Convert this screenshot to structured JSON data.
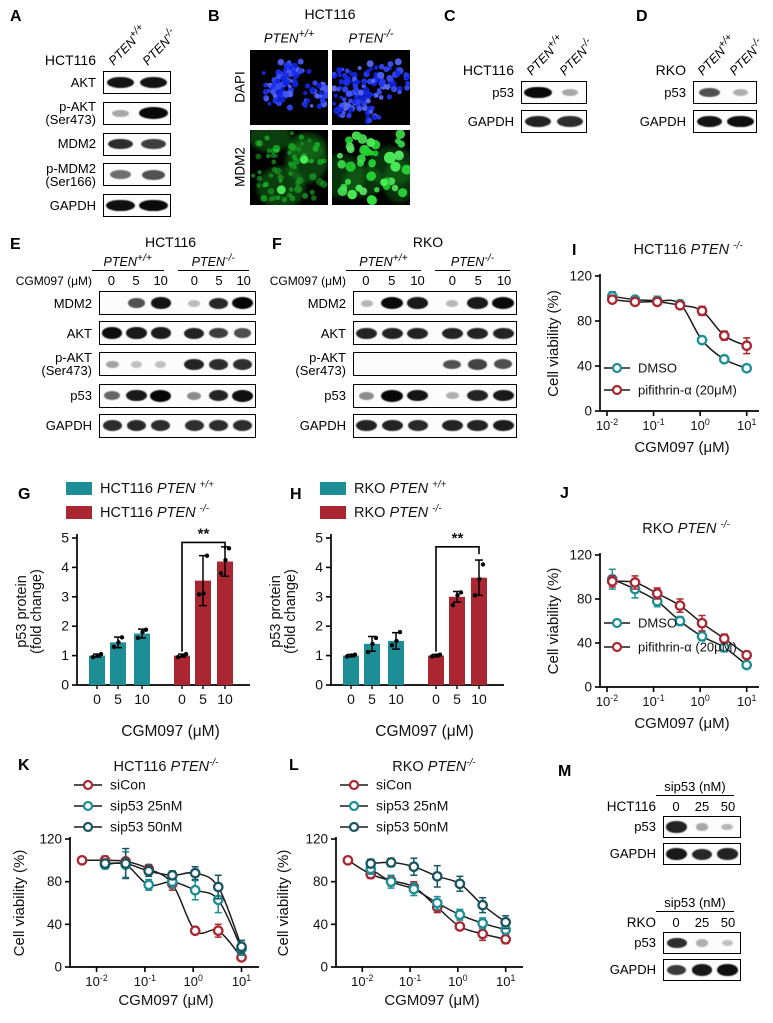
{
  "panels": {
    "A": "A",
    "B": "B",
    "C": "C",
    "D": "D",
    "E": "E",
    "F": "F",
    "G": "G",
    "H": "H",
    "I": "I",
    "J": "J",
    "K": "K",
    "L": "L",
    "M": "M"
  },
  "colors": {
    "teal": "#1d8e96",
    "red": "#aa2631",
    "dark_teal": "#175661",
    "curve": "#1c1c1c",
    "dapi_blue": "#2b2de8",
    "mdm2_green": "#3fd14b",
    "band": "#060606"
  },
  "blots": {
    "A": {
      "cell_line": "HCT116",
      "lanes": [
        {
          "name": "PTEN",
          "sup": "+/+"
        },
        {
          "name": "PTEN",
          "sup": "-/-"
        }
      ],
      "rows": [
        {
          "label": [
            "AKT"
          ],
          "bands": [
            0.92,
            0.92
          ]
        },
        {
          "label": [
            "p-AKT",
            "(Ser473)"
          ],
          "bands": [
            0.15,
            0.97
          ]
        },
        {
          "label": [
            "MDM2"
          ],
          "bands": [
            0.8,
            0.7
          ]
        },
        {
          "label": [
            "p-MDM2",
            "(Ser166)"
          ],
          "bands": [
            0.45,
            0.6
          ]
        },
        {
          "label": [
            "GAPDH"
          ],
          "bands": [
            0.95,
            0.97
          ]
        }
      ]
    },
    "C": {
      "cell_line": "HCT116",
      "lanes": [
        {
          "name": "PTEN",
          "sup": "+/+"
        },
        {
          "name": "PTEN",
          "sup": "-/-"
        }
      ],
      "rows": [
        {
          "label": [
            "p53"
          ],
          "bands": [
            0.97,
            0.15
          ]
        },
        {
          "label": [
            "GAPDH"
          ],
          "bands": [
            0.85,
            0.8
          ]
        }
      ]
    },
    "D": {
      "cell_line": "RKO",
      "lanes": [
        {
          "name": "PTEN",
          "sup": "+/+"
        },
        {
          "name": "PTEN",
          "sup": "-/-"
        }
      ],
      "rows": [
        {
          "label": [
            "p53"
          ],
          "bands": [
            0.6,
            0.12
          ]
        },
        {
          "label": [
            "GAPDH"
          ],
          "bands": [
            0.92,
            0.95
          ]
        }
      ]
    },
    "E": {
      "title": "HCT116",
      "treatment": "CGM097 (μM)",
      "groups": [
        {
          "name": "PTEN",
          "sup": "+/+"
        },
        {
          "name": "PTEN",
          "sup": "-/-"
        }
      ],
      "doses": [
        "0",
        "5",
        "10",
        "0",
        "5",
        "10"
      ],
      "rows": [
        {
          "label": [
            "MDM2"
          ],
          "bands": [
            0,
            0.6,
            0.92,
            0.05,
            0.82,
            1
          ]
        },
        {
          "label": [
            "AKT"
          ],
          "bands": [
            0.95,
            0.9,
            0.88,
            0.85,
            0.7,
            0.62
          ]
        },
        {
          "label": [
            "p-AKT",
            "(Ser473)"
          ],
          "bands": [
            0.18,
            0.02,
            0.02,
            0.85,
            0.8,
            0.78
          ]
        },
        {
          "label": [
            "p53"
          ],
          "bands": [
            0.5,
            0.9,
            1,
            0.3,
            0.85,
            0.95
          ]
        },
        {
          "label": [
            "GAPDH"
          ],
          "bands": [
            0.8,
            0.82,
            0.8,
            0.78,
            0.8,
            0.8
          ]
        }
      ]
    },
    "F": {
      "title": "RKO",
      "treatment": "CGM097 (μM)",
      "groups": [
        {
          "name": "PTEN",
          "sup": "+/+"
        },
        {
          "name": "PTEN",
          "sup": "-/-"
        }
      ],
      "doses": [
        "0",
        "5",
        "10",
        "0",
        "5",
        "10"
      ],
      "rows": [
        {
          "label": [
            "MDM2"
          ],
          "bands": [
            0.08,
            0.97,
            0.9,
            0.06,
            0.9,
            0.97
          ]
        },
        {
          "label": [
            "AKT"
          ],
          "bands": [
            0.85,
            0.85,
            0.85,
            0.85,
            0.85,
            0.85
          ]
        },
        {
          "label": [
            "p-AKT",
            "(Ser473)"
          ],
          "bands": [
            0,
            0,
            0,
            0.6,
            0.68,
            0.62
          ]
        },
        {
          "label": [
            "p53"
          ],
          "bands": [
            0.3,
            1,
            0.92,
            0.12,
            0.85,
            0.9
          ]
        },
        {
          "label": [
            "GAPDH"
          ],
          "bands": [
            0.85,
            0.85,
            0.82,
            0.85,
            0.85,
            0.88
          ]
        }
      ]
    },
    "M": {
      "groups": [
        {
          "header": "sip53 (nM)",
          "cell_line": "HCT116",
          "doses": [
            "0",
            "25",
            "50"
          ],
          "rows": [
            {
              "label": [
                "p53"
              ],
              "bands": [
                0.85,
                0.15,
                0.08
              ]
            },
            {
              "label": [
                "GAPDH"
              ],
              "bands": [
                0.9,
                0.82,
                0.85
              ]
            }
          ]
        },
        {
          "header": "sip53 (nM)",
          "cell_line": "RKO",
          "doses": [
            "0",
            "25",
            "50"
          ],
          "rows": [
            {
              "label": [
                "p53"
              ],
              "bands": [
                0.8,
                0.12,
                0.02
              ]
            },
            {
              "label": [
                "GAPDH"
              ],
              "bands": [
                0.72,
                0.9,
                0.95
              ]
            }
          ]
        }
      ]
    }
  },
  "micrographs": {
    "B": {
      "title": "HCT116",
      "columns": [
        {
          "name": "PTEN",
          "sup": "+/+"
        },
        {
          "name": "PTEN",
          "sup": "-/-"
        }
      ],
      "rows": [
        "DAPI",
        "MDM2"
      ]
    }
  },
  "chart_data": [
    {
      "id": "G",
      "type": "bar",
      "categories": [
        "0",
        "5",
        "10"
      ],
      "xlabel": "CGM097 (μM)",
      "ylabel": [
        "p53 protein",
        "(fold change)"
      ],
      "ylim": [
        0,
        5
      ],
      "yticks": [
        0,
        1,
        2,
        3,
        4,
        5
      ],
      "series": [
        {
          "legend": {
            "pre": "HCT116 ",
            "italic": "PTEN ",
            "sup": "+/+"
          },
          "color": "#1d8e96",
          "values": [
            1.0,
            1.45,
            1.75
          ],
          "errors": [
            0.05,
            0.18,
            0.15
          ],
          "dots": [
            [
              0.95,
              1.0,
              1.05
            ],
            [
              1.3,
              1.45,
              1.62
            ],
            [
              1.6,
              1.8,
              1.88
            ]
          ]
        },
        {
          "legend": {
            "pre": "HCT116 ",
            "italic": "PTEN ",
            "sup": "-/-"
          },
          "color": "#aa2631",
          "values": [
            1.0,
            3.55,
            4.2
          ],
          "errors": [
            0.05,
            0.85,
            0.5
          ],
          "dots": [
            [
              0.95,
              1.0,
              1.05
            ],
            [
              3.08,
              3.12,
              4.4
            ],
            [
              3.8,
              4.25,
              4.65
            ]
          ]
        }
      ],
      "significance": {
        "label": "**",
        "series": 1,
        "from": 0,
        "to": 2
      }
    },
    {
      "id": "H",
      "type": "bar",
      "categories": [
        "0",
        "5",
        "10"
      ],
      "xlabel": "CGM097  (μM)",
      "ylabel": [
        "p53 protein",
        "(fold change)"
      ],
      "ylim": [
        0,
        5
      ],
      "yticks": [
        0,
        1,
        2,
        3,
        4,
        5
      ],
      "series": [
        {
          "legend": {
            "pre": "RKO ",
            "italic": "PTEN ",
            "sup": "+/+"
          },
          "color": "#1d8e96",
          "values": [
            1.0,
            1.4,
            1.5
          ],
          "errors": [
            0.04,
            0.25,
            0.28
          ],
          "dots": [
            [
              0.97,
              1.0,
              1.03
            ],
            [
              1.12,
              1.4,
              1.6
            ],
            [
              1.35,
              1.5,
              1.8
            ]
          ]
        },
        {
          "legend": {
            "pre": "RKO ",
            "italic": "PTEN ",
            "sup": "-/-"
          },
          "color": "#aa2631",
          "values": [
            1.0,
            3.0,
            3.65
          ],
          "errors": [
            0.04,
            0.18,
            0.6
          ],
          "dots": [
            [
              0.97,
              1.0,
              1.03
            ],
            [
              2.72,
              3.05,
              3.15
            ],
            [
              3.05,
              3.6,
              4.1
            ]
          ]
        }
      ],
      "significance": {
        "label": "**",
        "series": 1,
        "from": 0,
        "to": 2
      }
    },
    {
      "id": "I",
      "type": "line",
      "title": {
        "pre": "HCT116 ",
        "italic": "PTEN ",
        "sup": "-/-"
      },
      "xlabel": "CGM097 (μM)",
      "ylabel": "Cell viability (%)",
      "ylim": [
        0,
        120
      ],
      "yticks": [
        0,
        40,
        80,
        120
      ],
      "xticks_exp": [
        -2,
        -1,
        0,
        1
      ],
      "series": [
        {
          "name": "DMSO",
          "color": "#1d8e96",
          "x": [
            0.013,
            0.04,
            0.12,
            0.37,
            1.1,
            3.3,
            10
          ],
          "y": [
            102,
            99,
            98,
            95,
            63,
            46,
            38
          ],
          "err": [
            4,
            2,
            4,
            3,
            3,
            3,
            3
          ]
        },
        {
          "name": "pifithrin-α (20μM)",
          "color": "#aa2631",
          "x": [
            0.013,
            0.04,
            0.12,
            0.37,
            1.1,
            3.3,
            10
          ],
          "y": [
            99,
            97,
            97,
            94,
            89,
            67,
            58
          ],
          "err": [
            2,
            2,
            3,
            2,
            4,
            4,
            7
          ]
        }
      ]
    },
    {
      "id": "J",
      "type": "line",
      "title": {
        "pre": "RKO ",
        "italic": "PTEN ",
        "sup": "-/-"
      },
      "xlabel": "CGM097 (μM)",
      "ylabel": "Cell viability (%)",
      "ylim": [
        0,
        120
      ],
      "yticks": [
        0,
        40,
        80,
        120
      ],
      "xticks_exp": [
        -2,
        -1,
        0,
        1
      ],
      "series": [
        {
          "name": "DMSO",
          "color": "#1d8e96",
          "x": [
            0.013,
            0.04,
            0.12,
            0.37,
            1.1,
            3.3,
            10
          ],
          "y": [
            98,
            89,
            78,
            60,
            46,
            36,
            20
          ],
          "err": [
            9,
            8,
            5,
            4,
            4,
            4,
            3
          ]
        },
        {
          "name": "pifithrin-α (20μM)",
          "color": "#aa2631",
          "x": [
            0.013,
            0.04,
            0.12,
            0.37,
            1.1,
            3.3,
            10
          ],
          "y": [
            96,
            95,
            85,
            74,
            58,
            44,
            29
          ],
          "err": [
            5,
            6,
            5,
            6,
            7,
            4,
            3
          ]
        }
      ]
    },
    {
      "id": "K",
      "type": "line",
      "title": {
        "pre": "HCT116 ",
        "italic": "PTEN",
        "sup": "-/-"
      },
      "xlabel": "CGM097 (μM)",
      "ylabel": "Cell viability (%)",
      "ylim": [
        0,
        120
      ],
      "yticks": [
        0,
        40,
        80,
        120
      ],
      "xticks_exp": [
        -2,
        -1,
        0,
        1
      ],
      "series": [
        {
          "name": "siCon",
          "color": "#aa2631",
          "x": [
            0.005,
            0.015,
            0.04,
            0.12,
            0.37,
            1.1,
            3.3,
            10
          ],
          "y": [
            100,
            100,
            99,
            92,
            78,
            34,
            34,
            9
          ],
          "err": [
            2,
            4,
            3,
            4,
            6,
            2,
            6,
            2
          ]
        },
        {
          "name": "sip53 25nM",
          "color": "#1d8e96",
          "x": [
            0.015,
            0.04,
            0.12,
            0.37,
            1.1,
            3.3,
            10
          ],
          "y": [
            96,
            96,
            77,
            80,
            72,
            63,
            17
          ],
          "err": [
            4,
            12,
            5,
            6,
            9,
            12,
            6
          ]
        },
        {
          "name": "sip53 50nM",
          "color": "#175661",
          "x": [
            0.015,
            0.04,
            0.12,
            0.37,
            1.1,
            3.3,
            10
          ],
          "y": [
            97,
            97,
            90,
            86,
            88,
            75,
            19
          ],
          "err": [
            4,
            14,
            5,
            4,
            6,
            11,
            6
          ]
        }
      ]
    },
    {
      "id": "L",
      "type": "line",
      "title": {
        "pre": "RKO ",
        "italic": "PTEN",
        "sup": "-/-"
      },
      "xlabel": "CGM097 (μM)",
      "ylabel": "Cell viability (%)",
      "ylim": [
        0,
        120
      ],
      "yticks": [
        0,
        40,
        80,
        120
      ],
      "xticks_exp": [
        -2,
        -1,
        0,
        1
      ],
      "series": [
        {
          "name": "siCon",
          "color": "#aa2631",
          "x": [
            0.005,
            0.015,
            0.04,
            0.12,
            0.37,
            1.1,
            3.3,
            10
          ],
          "y": [
            100,
            87,
            81,
            75,
            56,
            38,
            31,
            26
          ],
          "err": [
            2,
            4,
            5,
            5,
            5,
            3,
            6,
            4
          ]
        },
        {
          "name": "sip53 25nM",
          "color": "#1d8e96",
          "x": [
            0.015,
            0.04,
            0.12,
            0.37,
            1.1,
            3.3,
            10
          ],
          "y": [
            92,
            80,
            73,
            60,
            49,
            41,
            35
          ],
          "err": [
            5,
            6,
            6,
            6,
            5,
            5,
            4
          ]
        },
        {
          "name": "sip53 50nM",
          "color": "#175661",
          "x": [
            0.015,
            0.04,
            0.12,
            0.37,
            1.1,
            3.3,
            10
          ],
          "y": [
            97,
            98,
            94,
            85,
            78,
            58,
            42
          ],
          "err": [
            4,
            4,
            8,
            10,
            7,
            7,
            6
          ]
        }
      ]
    }
  ]
}
